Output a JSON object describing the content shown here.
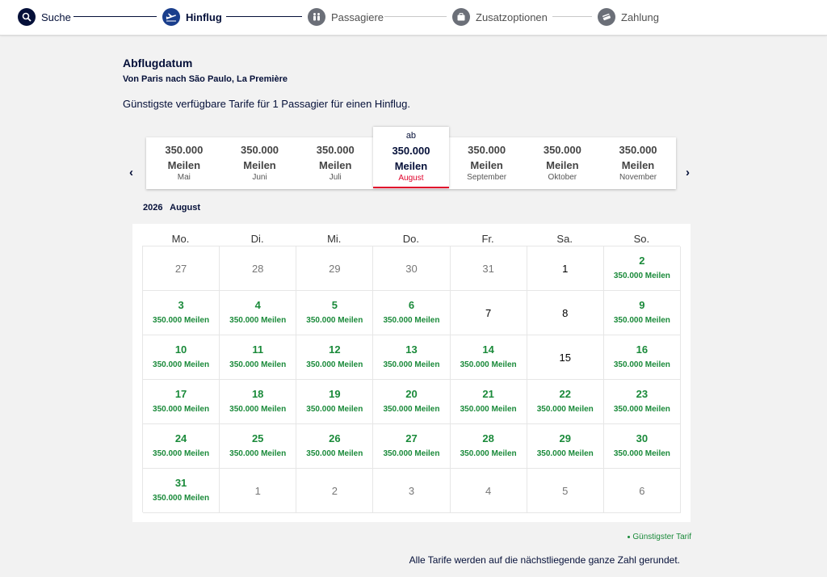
{
  "steps": [
    {
      "label": "Suche",
      "icon": "search-icon",
      "state": "done"
    },
    {
      "label": "Hinflug",
      "icon": "plane-icon",
      "state": "active"
    },
    {
      "label": "Passagiere",
      "icon": "passengers-icon",
      "state": "todo"
    },
    {
      "label": "Zusatzoptionen",
      "icon": "luggage-icon",
      "state": "todo"
    },
    {
      "label": "Zahlung",
      "icon": "credit-card-icon",
      "state": "todo"
    }
  ],
  "page": {
    "title": "Abflugdatum",
    "route": "Von Paris nach São Paulo, La Première",
    "subtitle": "Günstigste verfügbare Tarife für 1 Passagier für einen Hinflug."
  },
  "months": [
    {
      "price": "350.000",
      "unit": "Meilen",
      "name": "Mai",
      "prefix": ""
    },
    {
      "price": "350.000",
      "unit": "Meilen",
      "name": "Juni",
      "prefix": ""
    },
    {
      "price": "350.000",
      "unit": "Meilen",
      "name": "Juli",
      "prefix": ""
    },
    {
      "price": "350.000",
      "unit": "Meilen",
      "name": "August",
      "prefix": "ab",
      "selected": true
    },
    {
      "price": "350.000",
      "unit": "Meilen",
      "name": "September",
      "prefix": ""
    },
    {
      "price": "350.000",
      "unit": "Meilen",
      "name": "Oktober",
      "prefix": ""
    },
    {
      "price": "350.000",
      "unit": "Meilen",
      "name": "November",
      "prefix": ""
    }
  ],
  "carousel": {
    "prev_icon": "‹",
    "next_icon": "›"
  },
  "calendar": {
    "year": "2026",
    "month": "August",
    "weekdays": [
      "Mo.",
      "Di.",
      "Mi.",
      "Do.",
      "Fr.",
      "Sa.",
      "So."
    ],
    "price_label": "350.000  Meilen",
    "days": [
      {
        "d": "27",
        "t": "other"
      },
      {
        "d": "28",
        "t": "other"
      },
      {
        "d": "29",
        "t": "other"
      },
      {
        "d": "30",
        "t": "other"
      },
      {
        "d": "31",
        "t": "other"
      },
      {
        "d": "1",
        "t": "cur"
      },
      {
        "d": "2",
        "t": "avail"
      },
      {
        "d": "3",
        "t": "avail"
      },
      {
        "d": "4",
        "t": "avail"
      },
      {
        "d": "5",
        "t": "avail"
      },
      {
        "d": "6",
        "t": "avail"
      },
      {
        "d": "7",
        "t": "cur"
      },
      {
        "d": "8",
        "t": "cur"
      },
      {
        "d": "9",
        "t": "avail"
      },
      {
        "d": "10",
        "t": "avail"
      },
      {
        "d": "11",
        "t": "avail"
      },
      {
        "d": "12",
        "t": "avail"
      },
      {
        "d": "13",
        "t": "avail"
      },
      {
        "d": "14",
        "t": "avail"
      },
      {
        "d": "15",
        "t": "cur"
      },
      {
        "d": "16",
        "t": "avail"
      },
      {
        "d": "17",
        "t": "avail"
      },
      {
        "d": "18",
        "t": "avail"
      },
      {
        "d": "19",
        "t": "avail"
      },
      {
        "d": "20",
        "t": "avail"
      },
      {
        "d": "21",
        "t": "avail"
      },
      {
        "d": "22",
        "t": "avail"
      },
      {
        "d": "23",
        "t": "avail"
      },
      {
        "d": "24",
        "t": "avail"
      },
      {
        "d": "25",
        "t": "avail"
      },
      {
        "d": "26",
        "t": "avail"
      },
      {
        "d": "27",
        "t": "avail"
      },
      {
        "d": "28",
        "t": "avail"
      },
      {
        "d": "29",
        "t": "avail"
      },
      {
        "d": "30",
        "t": "avail"
      },
      {
        "d": "31",
        "t": "avail"
      },
      {
        "d": "1",
        "t": "other"
      },
      {
        "d": "2",
        "t": "other"
      },
      {
        "d": "3",
        "t": "other"
      },
      {
        "d": "4",
        "t": "other"
      },
      {
        "d": "5",
        "t": "other"
      },
      {
        "d": "6",
        "t": "other"
      }
    ]
  },
  "legend": "Günstigster Tarif",
  "note": "Alle Tarife werden auf die nächstliegende ganze Zahl gerundet.",
  "colors": {
    "navy": "#051039",
    "green": "#1a8a3a",
    "red": "#e0002a"
  }
}
